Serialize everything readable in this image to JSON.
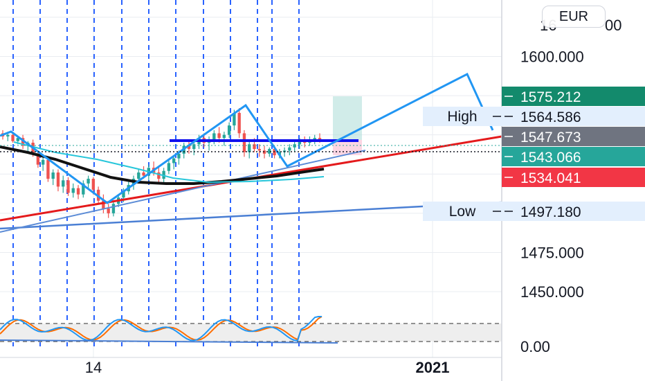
{
  "currency_button": {
    "label": "EUR"
  },
  "colors": {
    "grid": "#e9ecf1",
    "vline": "#2962ff",
    "candle_up": "#26a69a",
    "candle_down": "#ef5350",
    "zigzag": "#2196f3",
    "trendline_red": "#e41a1c",
    "support_line": "#4a7fd4",
    "sma_black": "#111111",
    "resistance": "#1010ee",
    "stoch_k": "#2196f3",
    "stoch_d": "#ff6d00",
    "label_green": "#26a69a",
    "label_dark_green": "#138a6c",
    "label_gray": "#6f7480",
    "label_red": "#f23645",
    "label_light": "#e3effd"
  },
  "chart_data": {
    "type": "candlestick",
    "symbol_currency": "EUR",
    "ylim": [
      1435,
      1636
    ],
    "y_ticks": [
      "1600.000",
      "1475.000",
      "1450.000"
    ],
    "y_tick_values": [
      1600,
      1475,
      1450
    ],
    "x_ticks": [
      "14",
      "2021"
    ],
    "price_labels": [
      {
        "text": "",
        "value": "1575.212",
        "price": 1575.212,
        "color_key": "label_dark_green",
        "text_color": "#ffffff"
      },
      {
        "text": "High",
        "value": "1564.586",
        "price": 1564.586,
        "color_key": "label_light",
        "text_color": "#131722"
      },
      {
        "text": "",
        "value": "1547.673",
        "price": 1547.673,
        "color_key": "label_gray",
        "text_color": "#ffffff"
      },
      {
        "text": "",
        "value": "1543.066",
        "price": 1543.066,
        "color_key": "label_green",
        "text_color": "#ffffff"
      },
      {
        "text": "",
        "value": "1534.041",
        "price": 1534.041,
        "color_key": "label_red",
        "text_color": "#ffffff"
      },
      {
        "text": "Low",
        "value": "1497.180",
        "price": 1497.18,
        "color_key": "label_light",
        "text_color": "#131722"
      }
    ],
    "candles": [
      [
        1551,
        1553,
        1547,
        1549
      ],
      [
        1549,
        1552,
        1546,
        1550
      ],
      [
        1550,
        1551,
        1545,
        1546
      ],
      [
        1546,
        1549,
        1544,
        1548
      ],
      [
        1548,
        1550,
        1541,
        1543
      ],
      [
        1543,
        1546,
        1539,
        1545
      ],
      [
        1545,
        1547,
        1536,
        1538
      ],
      [
        1538,
        1540,
        1529,
        1531
      ],
      [
        1531,
        1536,
        1527,
        1534
      ],
      [
        1534,
        1535,
        1520,
        1522
      ],
      [
        1522,
        1528,
        1518,
        1526
      ],
      [
        1526,
        1528,
        1514,
        1517
      ],
      [
        1517,
        1524,
        1513,
        1521
      ],
      [
        1521,
        1523,
        1511,
        1513
      ],
      [
        1513,
        1519,
        1510,
        1516
      ],
      [
        1516,
        1518,
        1509,
        1512
      ],
      [
        1512,
        1521,
        1510,
        1519
      ],
      [
        1519,
        1524,
        1516,
        1522
      ],
      [
        1522,
        1523,
        1512,
        1515
      ],
      [
        1515,
        1517,
        1506,
        1508
      ],
      [
        1508,
        1512,
        1500,
        1503
      ],
      [
        1503,
        1506,
        1497,
        1500
      ],
      [
        1500,
        1508,
        1498,
        1506
      ],
      [
        1506,
        1512,
        1504,
        1510
      ],
      [
        1510,
        1516,
        1507,
        1514
      ],
      [
        1514,
        1520,
        1512,
        1518
      ],
      [
        1518,
        1524,
        1515,
        1522
      ],
      [
        1522,
        1528,
        1519,
        1526
      ],
      [
        1526,
        1530,
        1522,
        1524
      ],
      [
        1524,
        1531,
        1521,
        1529
      ],
      [
        1529,
        1533,
        1524,
        1526
      ],
      [
        1526,
        1530,
        1520,
        1522
      ],
      [
        1522,
        1529,
        1519,
        1527
      ],
      [
        1527,
        1534,
        1525,
        1532
      ],
      [
        1532,
        1537,
        1528,
        1535
      ],
      [
        1535,
        1540,
        1531,
        1538
      ],
      [
        1538,
        1545,
        1535,
        1543
      ],
      [
        1543,
        1547,
        1538,
        1541
      ],
      [
        1541,
        1546,
        1537,
        1544
      ],
      [
        1544,
        1550,
        1541,
        1548
      ],
      [
        1548,
        1551,
        1542,
        1545
      ],
      [
        1545,
        1549,
        1540,
        1547
      ],
      [
        1547,
        1553,
        1544,
        1551
      ],
      [
        1551,
        1555,
        1545,
        1548
      ],
      [
        1548,
        1552,
        1543,
        1550
      ],
      [
        1550,
        1558,
        1548,
        1556
      ],
      [
        1556,
        1566,
        1553,
        1564
      ],
      [
        1564,
        1567,
        1548,
        1551
      ],
      [
        1551,
        1553,
        1536,
        1539
      ],
      [
        1539,
        1546,
        1535,
        1544
      ],
      [
        1544,
        1548,
        1539,
        1541
      ],
      [
        1541,
        1544,
        1536,
        1540
      ],
      [
        1540,
        1543,
        1535,
        1538
      ],
      [
        1538,
        1542,
        1536,
        1541
      ],
      [
        1541,
        1543,
        1535,
        1537
      ],
      [
        1537,
        1541,
        1535,
        1539
      ],
      [
        1539,
        1542,
        1536,
        1540
      ],
      [
        1540,
        1544,
        1537,
        1542
      ],
      [
        1542,
        1546,
        1539,
        1544
      ],
      [
        1544,
        1548,
        1541,
        1546
      ],
      [
        1546,
        1549,
        1542,
        1545
      ],
      [
        1545,
        1549,
        1543,
        1547
      ],
      [
        1547,
        1550,
        1544,
        1548
      ],
      [
        1548,
        1551,
        1545,
        1547
      ]
    ],
    "indicator": {
      "name": "Stochastic",
      "bands": [
        80,
        20
      ],
      "ylim": [
        -5,
        100
      ],
      "bottom_tick": "0.00"
    }
  }
}
